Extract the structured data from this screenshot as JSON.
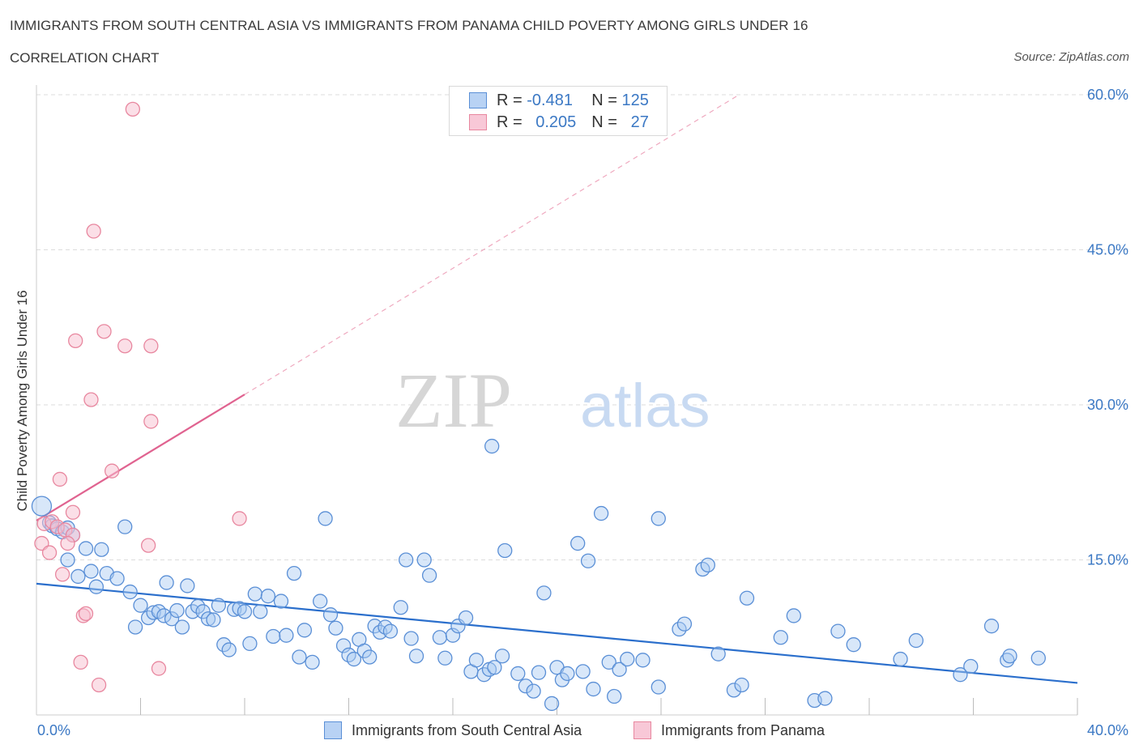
{
  "header": {
    "title": "IMMIGRANTS FROM SOUTH CENTRAL ASIA VS IMMIGRANTS FROM PANAMA CHILD POVERTY AMONG GIRLS UNDER 16",
    "subtitle": "CORRELATION CHART",
    "source": "Source: ZipAtlas.com"
  },
  "watermark": {
    "zip": "ZIP",
    "atlas": "atlas"
  },
  "legend": {
    "rows": [
      {
        "r_label": "R =",
        "r_value": "-0.481",
        "n_label": "N =",
        "n_value": "125"
      },
      {
        "r_label": "R =",
        "r_value": "0.205",
        "n_label": "N =",
        "n_value": "27"
      }
    ]
  },
  "colors": {
    "blue_fill": "#a9c9f2",
    "blue_stroke": "#5a8fd6",
    "blue_line": "#2b6fcc",
    "pink_fill": "#f7bfd0",
    "pink_stroke": "#e8879f",
    "pink_line": "#e06390",
    "axis_label": "#3b78c4",
    "grid": "#dddddd"
  },
  "chart_data": {
    "type": "scatter",
    "title": "IMMIGRANTS FROM SOUTH CENTRAL ASIA VS IMMIGRANTS FROM PANAMA CHILD POVERTY AMONG GIRLS UNDER 16",
    "xlabel": "",
    "ylabel": "Child Poverty Among Girls Under 16",
    "xlim": [
      0,
      40
    ],
    "ylim": [
      0,
      60
    ],
    "x_tick_labels": [
      "0.0%",
      "40.0%"
    ],
    "y_tick_labels": [
      {
        "value": 15,
        "label": "15.0%"
      },
      {
        "value": 30,
        "label": "30.0%"
      },
      {
        "value": 45,
        "label": "45.0%"
      },
      {
        "value": 60,
        "label": "60.0%"
      }
    ],
    "grid": true,
    "legend_position": "bottom-center",
    "series": [
      {
        "name": "Immigrants from South Central Asia",
        "color": "#5a8fd6",
        "trend": {
          "x": [
            0,
            40
          ],
          "y": [
            12.7,
            3.1
          ]
        },
        "points": [
          [
            0.2,
            20.2
          ],
          [
            0.5,
            18.6
          ],
          [
            0.6,
            18.3
          ],
          [
            0.8,
            18.0
          ],
          [
            1.0,
            17.7
          ],
          [
            1.2,
            18.1
          ],
          [
            1.4,
            17.4
          ],
          [
            1.2,
            15.0
          ],
          [
            1.6,
            13.4
          ],
          [
            1.9,
            16.1
          ],
          [
            2.1,
            13.9
          ],
          [
            2.3,
            12.4
          ],
          [
            2.5,
            16.0
          ],
          [
            2.7,
            13.7
          ],
          [
            3.1,
            13.2
          ],
          [
            3.4,
            18.2
          ],
          [
            3.6,
            11.9
          ],
          [
            3.8,
            8.5
          ],
          [
            4.0,
            10.6
          ],
          [
            4.3,
            9.4
          ],
          [
            4.5,
            9.9
          ],
          [
            4.7,
            10.0
          ],
          [
            4.9,
            9.6
          ],
          [
            5.0,
            12.8
          ],
          [
            5.2,
            9.3
          ],
          [
            5.4,
            10.1
          ],
          [
            5.6,
            8.5
          ],
          [
            5.8,
            12.5
          ],
          [
            6.0,
            10.0
          ],
          [
            6.2,
            10.5
          ],
          [
            6.4,
            10.0
          ],
          [
            6.6,
            9.3
          ],
          [
            6.8,
            9.2
          ],
          [
            7.0,
            10.6
          ],
          [
            7.2,
            6.8
          ],
          [
            7.4,
            6.3
          ],
          [
            7.6,
            10.2
          ],
          [
            7.8,
            10.3
          ],
          [
            8.0,
            10.0
          ],
          [
            8.2,
            6.9
          ],
          [
            8.4,
            11.7
          ],
          [
            8.6,
            10.0
          ],
          [
            8.9,
            11.5
          ],
          [
            9.1,
            7.6
          ],
          [
            9.4,
            11.0
          ],
          [
            9.6,
            7.7
          ],
          [
            9.9,
            13.7
          ],
          [
            10.1,
            5.6
          ],
          [
            10.3,
            8.2
          ],
          [
            10.6,
            5.1
          ],
          [
            10.9,
            11.0
          ],
          [
            11.1,
            19.0
          ],
          [
            11.3,
            9.7
          ],
          [
            11.5,
            8.4
          ],
          [
            11.8,
            6.7
          ],
          [
            12.0,
            5.8
          ],
          [
            12.2,
            5.4
          ],
          [
            12.4,
            7.3
          ],
          [
            12.6,
            6.2
          ],
          [
            12.8,
            5.6
          ],
          [
            13.0,
            8.6
          ],
          [
            13.2,
            8.0
          ],
          [
            13.4,
            8.5
          ],
          [
            13.6,
            8.1
          ],
          [
            14.0,
            10.4
          ],
          [
            14.2,
            15.0
          ],
          [
            14.4,
            7.4
          ],
          [
            14.6,
            5.7
          ],
          [
            14.9,
            15.0
          ],
          [
            15.1,
            13.5
          ],
          [
            15.5,
            7.5
          ],
          [
            15.7,
            5.5
          ],
          [
            16.0,
            7.7
          ],
          [
            16.2,
            8.6
          ],
          [
            16.5,
            9.4
          ],
          [
            16.7,
            4.2
          ],
          [
            16.9,
            5.3
          ],
          [
            17.2,
            3.9
          ],
          [
            17.4,
            4.4
          ],
          [
            17.6,
            4.6
          ],
          [
            17.5,
            26.0
          ],
          [
            17.9,
            5.7
          ],
          [
            18.0,
            15.9
          ],
          [
            18.5,
            4.0
          ],
          [
            18.8,
            2.8
          ],
          [
            19.1,
            2.3
          ],
          [
            19.3,
            4.1
          ],
          [
            19.5,
            11.8
          ],
          [
            19.8,
            1.1
          ],
          [
            20.0,
            4.6
          ],
          [
            20.2,
            3.4
          ],
          [
            20.4,
            4.0
          ],
          [
            20.8,
            16.6
          ],
          [
            21.0,
            4.2
          ],
          [
            21.2,
            14.9
          ],
          [
            21.4,
            2.5
          ],
          [
            21.7,
            19.5
          ],
          [
            22.0,
            5.1
          ],
          [
            22.2,
            1.8
          ],
          [
            22.4,
            4.4
          ],
          [
            22.7,
            5.4
          ],
          [
            23.3,
            5.3
          ],
          [
            23.9,
            19.0
          ],
          [
            23.9,
            2.7
          ],
          [
            24.7,
            8.3
          ],
          [
            24.9,
            8.8
          ],
          [
            25.6,
            14.1
          ],
          [
            25.8,
            14.5
          ],
          [
            26.2,
            5.9
          ],
          [
            26.8,
            2.4
          ],
          [
            27.1,
            2.9
          ],
          [
            27.3,
            11.3
          ],
          [
            28.6,
            7.5
          ],
          [
            29.1,
            9.6
          ],
          [
            29.9,
            1.4
          ],
          [
            30.3,
            1.6
          ],
          [
            30.8,
            8.1
          ],
          [
            31.4,
            6.8
          ],
          [
            33.2,
            5.4
          ],
          [
            33.8,
            7.2
          ],
          [
            35.5,
            3.9
          ],
          [
            35.9,
            4.7
          ],
          [
            36.7,
            8.6
          ],
          [
            37.3,
            5.3
          ],
          [
            37.4,
            5.7
          ],
          [
            38.5,
            5.5
          ]
        ]
      },
      {
        "name": "Immigrants from Panama",
        "color": "#e8879f",
        "trend": {
          "x": [
            0,
            8.0
          ],
          "y": [
            18.8,
            31.0
          ]
        },
        "trend_ext": {
          "x": [
            8.0,
            27.0
          ],
          "y": [
            31.0,
            60.0
          ]
        },
        "points": [
          [
            3.7,
            58.6
          ],
          [
            2.2,
            46.8
          ],
          [
            2.6,
            37.1
          ],
          [
            1.5,
            36.2
          ],
          [
            3.4,
            35.7
          ],
          [
            4.4,
            35.7
          ],
          [
            2.1,
            30.5
          ],
          [
            4.4,
            28.4
          ],
          [
            2.9,
            23.6
          ],
          [
            0.9,
            22.8
          ],
          [
            1.4,
            19.6
          ],
          [
            7.8,
            19.0
          ],
          [
            0.3,
            18.5
          ],
          [
            0.6,
            18.7
          ],
          [
            0.8,
            18.2
          ],
          [
            1.1,
            17.9
          ],
          [
            1.4,
            17.4
          ],
          [
            0.2,
            16.6
          ],
          [
            1.2,
            16.6
          ],
          [
            4.3,
            16.4
          ],
          [
            0.5,
            15.7
          ],
          [
            1.0,
            13.6
          ],
          [
            1.8,
            9.6
          ],
          [
            1.9,
            9.8
          ],
          [
            4.7,
            4.5
          ],
          [
            1.7,
            5.1
          ],
          [
            2.4,
            2.9
          ]
        ]
      }
    ]
  },
  "bottom_legend": {
    "items": [
      {
        "label": "Immigrants from South Central Asia"
      },
      {
        "label": "Immigrants from Panama"
      }
    ]
  }
}
